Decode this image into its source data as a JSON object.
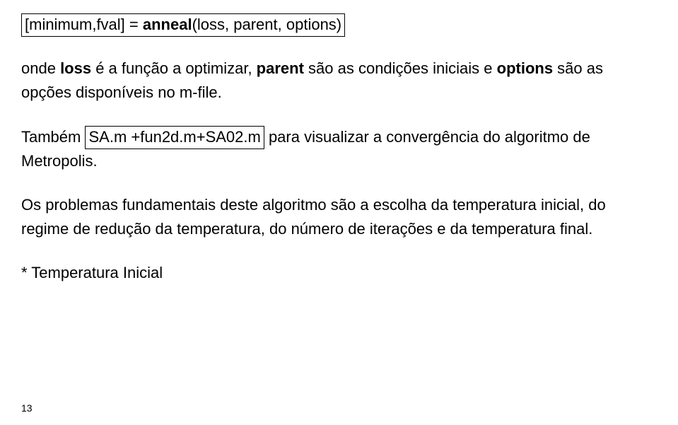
{
  "box1_a": "[minimum,fval] = ",
  "box1_b": "anneal",
  "box1_c": "(loss, parent, options)",
  "p1_a": "onde ",
  "p1_b": "loss",
  "p1_c": " é a função a optimizar, ",
  "p1_d": "parent",
  "p1_e": " são as condições iniciais e ",
  "p1_f": "options",
  "p1_g": " são as opções disponíveis no m-file.",
  "p2_a": "Também ",
  "box2": "SA.m +fun2d.m+SA02.m",
  "p2_b": " para visualizar a convergência do algoritmo de Metropolis.",
  "p3": "Os problemas fundamentais deste algoritmo são a escolha da temperatura inicial, do regime de redução da temperatura, do número de iterações e da temperatura final.",
  "p4": "* Temperatura Inicial",
  "page_number": "13"
}
